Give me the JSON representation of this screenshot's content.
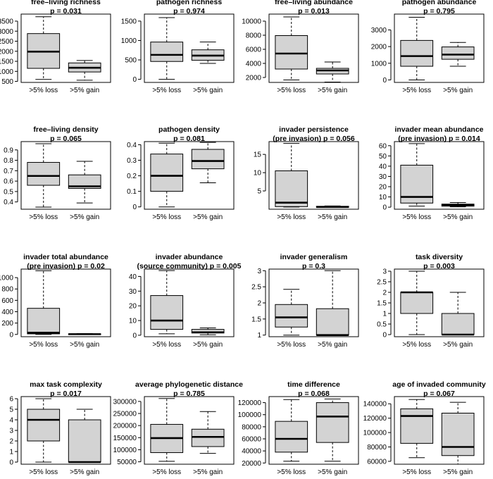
{
  "chart_data": [
    {
      "type": "boxplot",
      "title": [
        "free–living richness",
        "p = 0.031"
      ],
      "categories": [
        ">5% loss",
        ">5% gain"
      ],
      "ylim": [
        450,
        3850
      ],
      "yticks": [
        500,
        1000,
        1500,
        2000,
        2500,
        3000,
        3500
      ],
      "boxes": [
        {
          "whisker_low": 600,
          "q1": 1150,
          "median": 1980,
          "q3": 2880,
          "whisker_high": 3720
        },
        {
          "whisker_low": 560,
          "q1": 970,
          "median": 1180,
          "q3": 1420,
          "whisker_high": 1540
        }
      ]
    },
    {
      "type": "boxplot",
      "title": [
        "pathogen richness",
        "p = 0.974"
      ],
      "categories": [
        ">5% loss",
        ">5% gain"
      ],
      "ylim": [
        -80,
        1680
      ],
      "yticks": [
        0,
        500,
        1000,
        1500
      ],
      "boxes": [
        {
          "whisker_low": 0,
          "q1": 460,
          "median": 630,
          "q3": 960,
          "whisker_high": 1590
        },
        {
          "whisker_low": 410,
          "q1": 490,
          "median": 610,
          "q3": 760,
          "whisker_high": 960
        }
      ]
    },
    {
      "type": "boxplot",
      "title": [
        "free–living abundance",
        "p = 0.013"
      ],
      "categories": [
        ">5% loss",
        ">5% gain"
      ],
      "ylim": [
        1300,
        11000
      ],
      "yticks": [
        2000,
        4000,
        6000,
        8000,
        10000
      ],
      "boxes": [
        {
          "whisker_low": 1650,
          "q1": 3200,
          "median": 5400,
          "q3": 7950,
          "whisker_high": 10600
        },
        {
          "whisker_low": 1350,
          "q1": 2500,
          "median": 3000,
          "q3": 3300,
          "whisker_high": 4200
        }
      ]
    },
    {
      "type": "boxplot",
      "title": [
        "pathogen abundance",
        "p = 0.795"
      ],
      "categories": [
        ">5% loss",
        ">5% gain"
      ],
      "ylim": [
        -150,
        3950
      ],
      "yticks": [
        0,
        1000,
        2000,
        3000
      ],
      "boxes": [
        {
          "whisker_low": 0,
          "q1": 820,
          "median": 1430,
          "q3": 2370,
          "whisker_high": 3760
        },
        {
          "whisker_low": 820,
          "q1": 1240,
          "median": 1520,
          "q3": 1980,
          "whisker_high": 2250
        }
      ]
    },
    {
      "type": "boxplot",
      "title": [
        "free–living density",
        "p = 0.065"
      ],
      "categories": [
        ">5% loss",
        ">5% gain"
      ],
      "ylim": [
        0.33,
        0.98
      ],
      "yticks": [
        0.4,
        0.5,
        0.6,
        0.7,
        0.8,
        0.9
      ],
      "boxes": [
        {
          "whisker_low": 0.35,
          "q1": 0.56,
          "median": 0.65,
          "q3": 0.78,
          "whisker_high": 0.96
        },
        {
          "whisker_low": 0.39,
          "q1": 0.53,
          "median": 0.55,
          "q3": 0.66,
          "whisker_high": 0.79
        }
      ]
    },
    {
      "type": "boxplot",
      "title": [
        "pathogen density",
        "p = 0.081"
      ],
      "categories": [
        ">5% loss",
        ">5% gain"
      ],
      "ylim": [
        -0.015,
        0.42
      ],
      "yticks": [
        0.0,
        0.1,
        0.2,
        0.3,
        0.4
      ],
      "boxes": [
        {
          "whisker_low": 0.0,
          "q1": 0.1,
          "median": 0.2,
          "q3": 0.34,
          "whisker_high": 0.41
        },
        {
          "whisker_low": 0.155,
          "q1": 0.245,
          "median": 0.295,
          "q3": 0.37,
          "whisker_high": 0.415
        }
      ]
    },
    {
      "type": "boxplot",
      "title": [
        "invader persistence",
        "(pre invasion)  p = 0.056"
      ],
      "categories": [
        ">5% loss",
        ">5% gain"
      ],
      "ylim": [
        0,
        18.5
      ],
      "yticks": [
        5,
        10,
        15
      ],
      "boxes": [
        {
          "whisker_low": 0.6,
          "q1": 0.7,
          "median": 1.8,
          "q3": 10.5,
          "whisker_high": 18
        },
        {
          "whisker_low": 0.5,
          "q1": 0.5,
          "median": 0.6,
          "q3": 0.8,
          "whisker_high": 0.9
        }
      ]
    },
    {
      "type": "boxplot",
      "title": [
        "invader mean abundance",
        "(pre invasion)  p = 0.014"
      ],
      "categories": [
        ">5% loss",
        ">5% gain"
      ],
      "ylim": [
        -2,
        64
      ],
      "yticks": [
        0,
        10,
        20,
        30,
        40,
        50,
        60
      ],
      "boxes": [
        {
          "whisker_low": 1,
          "q1": 4,
          "median": 10,
          "q3": 41,
          "whisker_high": 62
        },
        {
          "whisker_low": 0.3,
          "q1": 1,
          "median": 2,
          "q3": 3,
          "whisker_high": 4.5
        }
      ]
    },
    {
      "type": "boxplot",
      "title": [
        "invader total abundance",
        "(pre invasion)  p = 0.02"
      ],
      "categories": [
        ">5% loss",
        ">5% gain"
      ],
      "ylim": [
        -40,
        1150
      ],
      "yticks": [
        0,
        200,
        400,
        600,
        800,
        1000
      ],
      "boxes": [
        {
          "whisker_low": 0,
          "q1": 10,
          "median": 30,
          "q3": 460,
          "whisker_high": 1120
        },
        {
          "whisker_low": 0,
          "q1": 2,
          "median": 5,
          "q3": 10,
          "whisker_high": 15
        }
      ]
    },
    {
      "type": "boxplot",
      "title": [
        "invader abundance",
        "(source community)  p = 0.005"
      ],
      "categories": [
        ">5% loss",
        ">5% gain"
      ],
      "ylim": [
        -1,
        45
      ],
      "yticks": [
        0,
        10,
        20,
        30,
        40
      ],
      "boxes": [
        {
          "whisker_low": 1,
          "q1": 4,
          "median": 10,
          "q3": 27,
          "whisker_high": 44
        },
        {
          "whisker_low": 0.3,
          "q1": 1.5,
          "median": 2,
          "q3": 4,
          "whisker_high": 5
        }
      ]
    },
    {
      "type": "boxplot",
      "title": [
        "invader generalism",
        "p = 0.3"
      ],
      "categories": [
        ">5% loss",
        ">5% gain"
      ],
      "ylim": [
        0.95,
        3.05
      ],
      "yticks": [
        1.0,
        1.5,
        2.0,
        2.5,
        3.0
      ],
      "boxes": [
        {
          "whisker_low": 1.0,
          "q1": 1.25,
          "median": 1.55,
          "q3": 1.95,
          "whisker_high": 2.42
        },
        {
          "whisker_low": 1.0,
          "q1": 1.0,
          "median": 1.0,
          "q3": 1.82,
          "whisker_high": 3.0
        }
      ]
    },
    {
      "type": "boxplot",
      "title": [
        "task diversity",
        "p = 0.003"
      ],
      "categories": [
        ">5% loss",
        ">5% gain"
      ],
      "ylim": [
        -0.1,
        3.1
      ],
      "yticks": [
        0.0,
        0.5,
        1.0,
        1.5,
        2.0,
        2.5,
        3.0
      ],
      "boxes": [
        {
          "whisker_low": 0,
          "q1": 1,
          "median": 2,
          "q3": 2,
          "whisker_high": 3
        },
        {
          "whisker_low": 0,
          "q1": 0,
          "median": 0,
          "q3": 1,
          "whisker_high": 2
        }
      ]
    },
    {
      "type": "boxplot",
      "title": [
        "max task complexity",
        "p = 0.017"
      ],
      "categories": [
        ">5% loss",
        ">5% gain"
      ],
      "ylim": [
        -0.2,
        6.2
      ],
      "yticks": [
        0,
        1,
        2,
        3,
        4,
        5,
        6
      ],
      "boxes": [
        {
          "whisker_low": 0,
          "q1": 2,
          "median": 4,
          "q3": 5,
          "whisker_high": 6
        },
        {
          "whisker_low": 0,
          "q1": 0,
          "median": 0,
          "q3": 4,
          "whisker_high": 5
        }
      ]
    },
    {
      "type": "boxplot",
      "title": [
        "average phylogenetic distance",
        "p = 0.785"
      ],
      "categories": [
        ">5% loss",
        ">5% gain"
      ],
      "ylim": [
        40000,
        320000
      ],
      "yticks": [
        50000,
        100000,
        150000,
        200000,
        250000,
        300000
      ],
      "boxes": [
        {
          "whisker_low": 52000,
          "q1": 88000,
          "median": 148000,
          "q3": 205000,
          "whisker_high": 312000
        },
        {
          "whisker_low": 85000,
          "q1": 113000,
          "median": 153000,
          "q3": 185000,
          "whisker_high": 258000
        }
      ]
    },
    {
      "type": "boxplot",
      "title": [
        "time difference",
        "p = 0.068"
      ],
      "categories": [
        ">5% loss",
        ">5% gain"
      ],
      "ylim": [
        18000,
        130000
      ],
      "yticks": [
        20000,
        40000,
        60000,
        80000,
        100000,
        120000
      ],
      "boxes": [
        {
          "whisker_low": 23000,
          "q1": 38000,
          "median": 60000,
          "q3": 89000,
          "whisker_high": 125000
        },
        {
          "whisker_low": 23000,
          "q1": 54000,
          "median": 97000,
          "q3": 120000,
          "whisker_high": 126000
        }
      ]
    },
    {
      "type": "boxplot",
      "title": [
        "age of invaded community",
        "p = 0.067"
      ],
      "categories": [
        ">5% loss",
        ">5% gain"
      ],
      "ylim": [
        56000,
        150000
      ],
      "yticks": [
        60000,
        80000,
        100000,
        120000,
        140000
      ],
      "boxes": [
        {
          "whisker_low": 65000,
          "q1": 85000,
          "median": 123000,
          "q3": 133000,
          "whisker_high": 146000
        },
        {
          "whisker_low": 56000,
          "q1": 68000,
          "median": 80000,
          "q3": 127000,
          "whisker_high": 142000
        }
      ]
    }
  ]
}
